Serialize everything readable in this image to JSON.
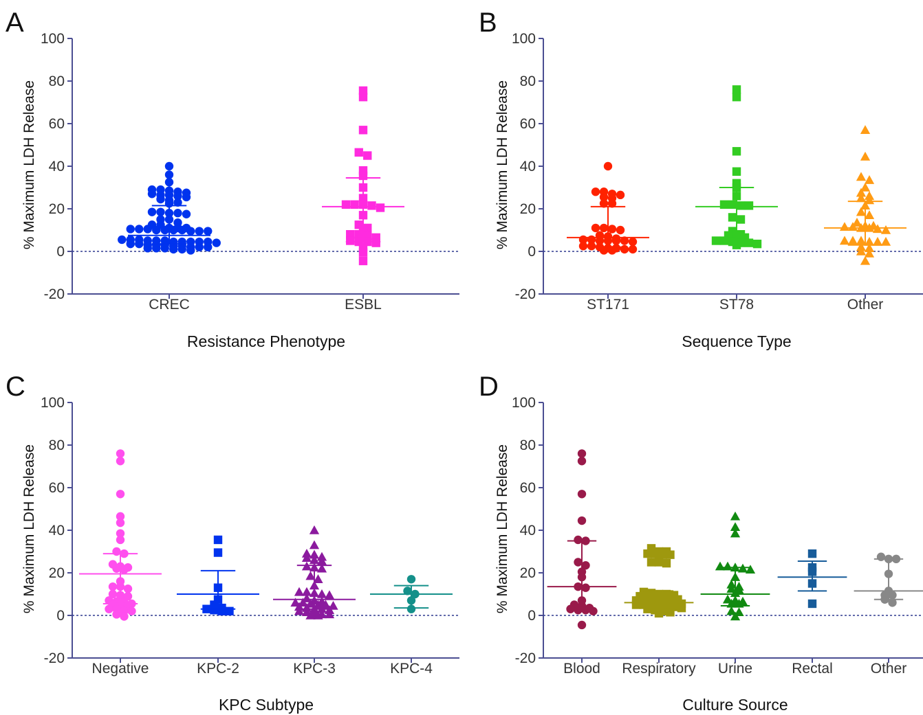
{
  "figure": {
    "y_axis_label": "% Maximum LDH Release",
    "colors": {
      "axis": "#4b4e92",
      "text": "#333333",
      "zero_line": "#2f3a8f"
    }
  },
  "chart_data": [
    {
      "panel": "A",
      "type": "scatter",
      "xlabel": "Resistance Phenotype",
      "ylabel": "% Maximum LDH Release",
      "ylim": [
        -20,
        100
      ],
      "yticks": [
        -20,
        0,
        20,
        40,
        60,
        80,
        100
      ],
      "zero_line": "dotted",
      "groups": [
        {
          "name": "CREC",
          "marker": "circle",
          "color": "#0033ee",
          "median": 7.5,
          "q1": 3.5,
          "q3": 21.5,
          "values": [
            40,
            36,
            32.5,
            29,
            28,
            27,
            26,
            26.5,
            25.5,
            26.5,
            27.5,
            28.5,
            29,
            23,
            24.5,
            24,
            22.5,
            18,
            18,
            18.5,
            17.5,
            18.5,
            15,
            15,
            13.5,
            12.5,
            12.5,
            11,
            10.5,
            10,
            10,
            9.5,
            9.5,
            9.5,
            10,
            10,
            10.5,
            10.5,
            11,
            11,
            5.5,
            5,
            5,
            4.5,
            4.5,
            4.5,
            4.5,
            5,
            5.5,
            5.5,
            4.5,
            4,
            3.5,
            3,
            3,
            2.5,
            2,
            1.5,
            1.5,
            1,
            0.5,
            1,
            1.5,
            2,
            2,
            2.5,
            3,
            3.5
          ]
        },
        {
          "name": "ESBL",
          "marker": "square",
          "color": "#ff2bdf",
          "median": 21,
          "q1": 4.5,
          "q3": 34.5,
          "values": [
            75.5,
            72.5,
            57,
            46.5,
            45,
            38,
            35.5,
            30,
            25,
            22,
            21.5,
            22,
            22,
            20.5,
            17,
            11,
            12.5,
            10,
            7.5,
            8,
            8,
            6.5,
            5,
            4.5,
            4.5,
            4,
            2,
            -0.5,
            -4.5
          ]
        }
      ]
    },
    {
      "panel": "B",
      "type": "scatter",
      "xlabel": "Sequence Type",
      "ylabel": "% Maximum LDH Release",
      "ylim": [
        -20,
        100
      ],
      "yticks": [
        -20,
        0,
        20,
        40,
        60,
        80,
        100
      ],
      "zero_line": "dotted",
      "groups": [
        {
          "name": "ST171",
          "marker": "circle",
          "color": "#ff2200",
          "median": 6.5,
          "q1": 2,
          "q3": 21,
          "values": [
            40,
            28,
            27,
            25,
            25.5,
            26.5,
            28,
            22.5,
            22.5,
            10.5,
            11,
            10,
            11,
            7,
            7.5,
            6,
            5,
            5.5,
            5,
            5,
            4.5,
            5,
            5.5,
            2.5,
            2,
            1.5,
            1,
            0.5,
            0.5,
            1,
            1.5,
            2.5
          ]
        },
        {
          "name": "ST78",
          "marker": "square",
          "color": "#33cc22",
          "median": 21,
          "q1": 5,
          "q3": 30,
          "values": [
            76,
            72.5,
            47,
            37.5,
            32,
            30,
            26,
            22,
            21.5,
            21.5,
            22,
            16,
            15,
            9.5,
            8,
            7.5,
            7.5,
            6.5,
            4.5,
            4,
            4,
            3,
            5,
            5,
            3.5
          ]
        },
        {
          "name": "Other",
          "marker": "triangle",
          "color": "#ff9b14",
          "median": 11,
          "q1": 3,
          "q3": 23.5,
          "values": [
            57,
            44.5,
            35,
            33.5,
            30,
            27.5,
            26,
            25,
            24,
            21.5,
            18.5,
            17,
            13.5,
            12,
            11.5,
            10.5,
            11,
            10,
            11.5,
            12,
            11,
            4.5,
            5,
            4.5,
            5,
            4.5,
            5,
            2,
            1.5,
            0,
            -1,
            -4.5
          ]
        }
      ]
    },
    {
      "panel": "C",
      "type": "scatter",
      "xlabel": "KPC Subtype",
      "ylabel": "% Maximum LDH Release",
      "ylim": [
        -20,
        100
      ],
      "yticks": [
        -20,
        0,
        20,
        40,
        60,
        80,
        100
      ],
      "zero_line": "dotted",
      "groups": [
        {
          "name": "Negative",
          "marker": "circle",
          "color": "#ff4fee",
          "median": 19.5,
          "q1": 5.5,
          "q3": 29,
          "values": [
            76,
            72.5,
            57,
            46.5,
            43.5,
            38.5,
            35.5,
            30,
            29,
            24,
            22.5,
            21.5,
            22,
            23,
            16,
            13.5,
            13.5,
            12.5,
            10,
            9.5,
            9,
            7,
            6.5,
            6.5,
            5.5,
            5,
            4.5,
            4.5,
            3,
            3,
            2,
            2,
            0.5,
            -0.5
          ]
        },
        {
          "name": "KPC-2",
          "marker": "square",
          "color": "#0033ee",
          "median": 10,
          "q1": 3,
          "q3": 21,
          "values": [
            35.5,
            29.5,
            13,
            7.5,
            5,
            3.5,
            3,
            2.5,
            2,
            2
          ]
        },
        {
          "name": "KPC-3",
          "marker": "triangle",
          "color": "#8b1a9e",
          "median": 7.5,
          "q1": 3,
          "q3": 23.5,
          "values": [
            40,
            33,
            29,
            28.5,
            27.5,
            27,
            26,
            25.5,
            22.5,
            23,
            22,
            18.5,
            17,
            14,
            11,
            11,
            10,
            10.5,
            9.5,
            8,
            7,
            6.5,
            6,
            6,
            5,
            5,
            5.5,
            4.5,
            4,
            3.5,
            3,
            3,
            2.5,
            2,
            1.5,
            1,
            0.5,
            0.5,
            0,
            0
          ]
        },
        {
          "name": "KPC-4",
          "marker": "circle",
          "color": "#14908a",
          "median": 10,
          "q1": 3.5,
          "q3": 14,
          "values": [
            17,
            11.5,
            10,
            7,
            3
          ]
        }
      ]
    },
    {
      "panel": "D",
      "type": "scatter",
      "xlabel": "Culture Source",
      "ylabel": "% Maximum LDH Release",
      "ylim": [
        -20,
        100
      ],
      "yticks": [
        -20,
        0,
        20,
        40,
        60,
        80,
        100
      ],
      "zero_line": "dotted",
      "groups": [
        {
          "name": "Blood",
          "marker": "circle",
          "color": "#991a4a",
          "median": 13.5,
          "q1": 2.5,
          "q3": 35,
          "values": [
            76,
            72.5,
            57,
            44.5,
            35.5,
            35,
            25,
            23.5,
            20.5,
            18,
            13.5,
            13,
            7,
            5,
            4.5,
            3.5,
            3,
            2.5,
            2.5,
            2,
            -4.5
          ]
        },
        {
          "name": "Respiratory",
          "marker": "square",
          "color": "#9e980e",
          "median": 6,
          "q1": 3,
          "q3": 11.5,
          "values": [
            31.5,
            30,
            30,
            29,
            29,
            28.5,
            28.5,
            27,
            25,
            25,
            24.5,
            10.5,
            11,
            10,
            10,
            9.5,
            9,
            9,
            8.5,
            8,
            8,
            7.5,
            7,
            7,
            6.5,
            6,
            6,
            6,
            5.5,
            5,
            5,
            5,
            4.5,
            4,
            4,
            3.5,
            3,
            2.5,
            2,
            1.5,
            1
          ]
        },
        {
          "name": "Urine",
          "marker": "triangle",
          "color": "#118a11",
          "median": 10,
          "q1": 4.5,
          "q3": 22.5,
          "values": [
            46.5,
            41.5,
            38.5,
            23,
            22.5,
            23,
            22,
            21.5,
            18,
            14.5,
            13.5,
            12.5,
            12,
            10.5,
            7.5,
            5.5,
            6.5,
            7,
            5.5,
            2,
            1.5,
            -0.5
          ]
        },
        {
          "name": "Rectal",
          "marker": "square",
          "color": "#175c9a",
          "median": 18,
          "q1": 11.5,
          "q3": 25.5,
          "values": [
            29,
            22.5,
            20.5,
            15,
            5.5
          ]
        },
        {
          "name": "Other",
          "marker": "circle",
          "color": "#888888",
          "median": 11.5,
          "q1": 7.5,
          "q3": 26.5,
          "values": [
            27.5,
            26.5,
            26.5,
            19.5,
            11.5,
            9.5,
            9.5,
            7.5,
            6
          ]
        }
      ]
    }
  ]
}
